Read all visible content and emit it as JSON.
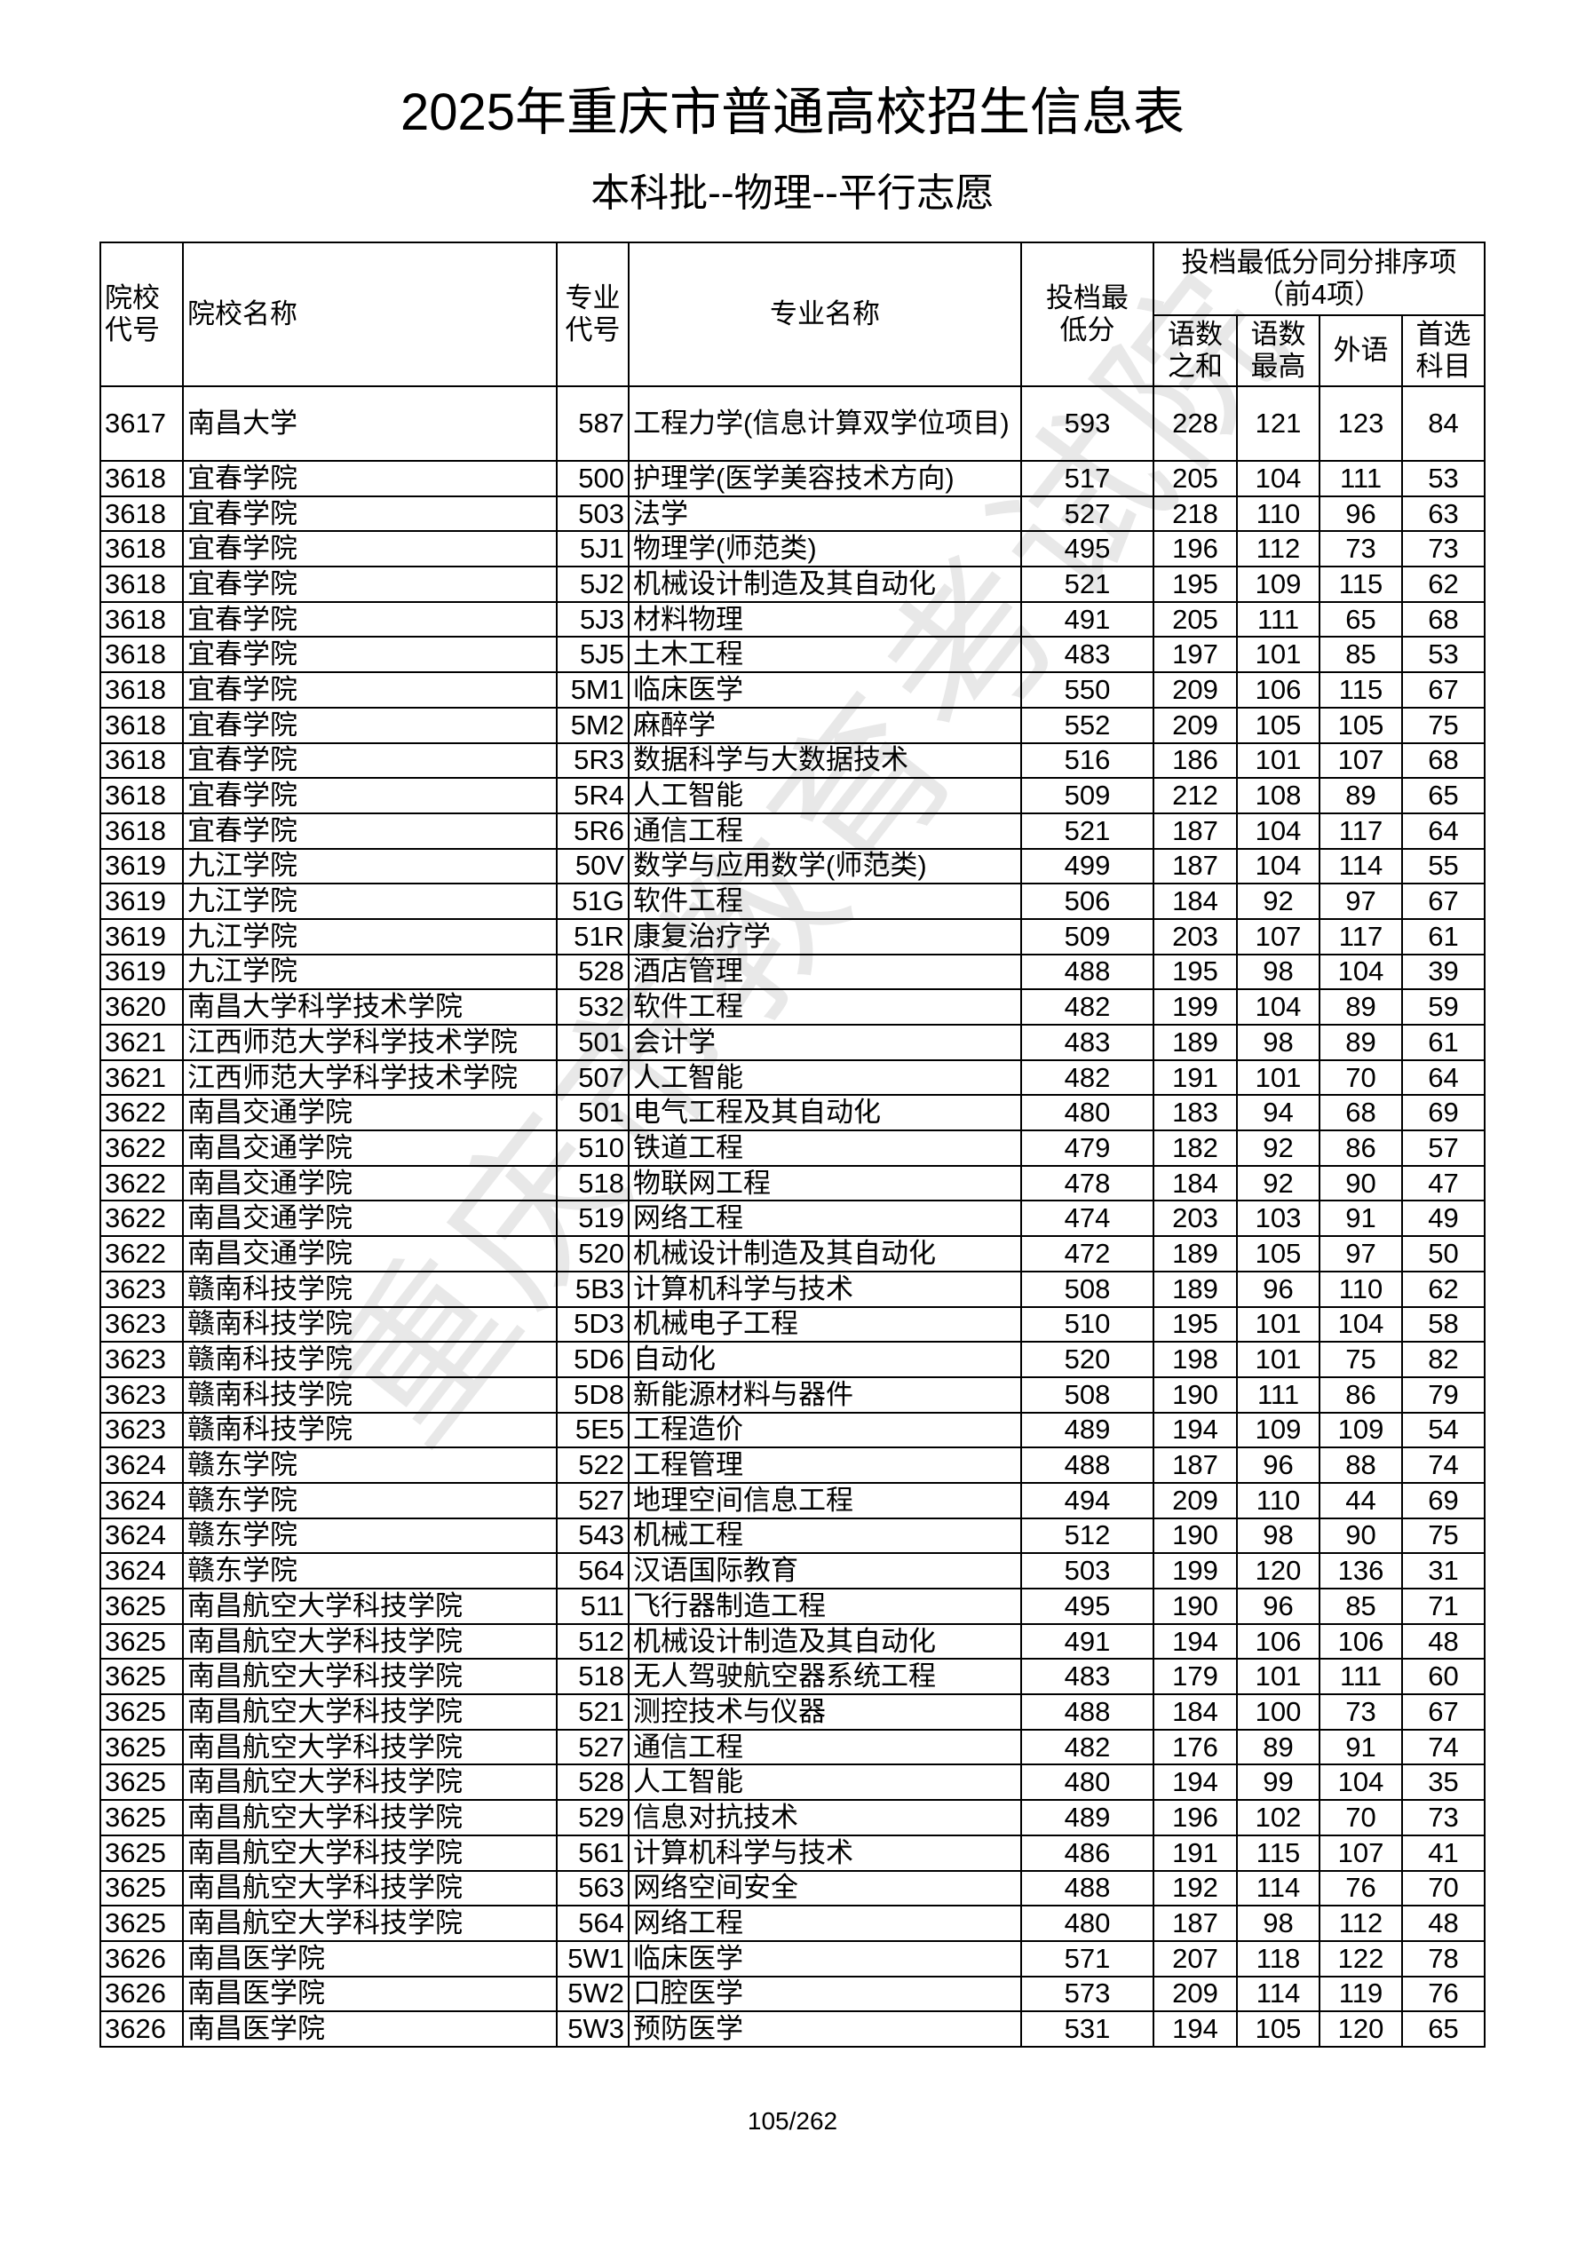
{
  "title": "2025年重庆市普通高校招生信息表",
  "subtitle": "本科批--物理--平行志愿",
  "watermark": "重庆市教育考试院",
  "headers": {
    "school_code": "院校代号",
    "school_name": "院校名称",
    "major_code": "专业代号",
    "major_name": "专业名称",
    "min_score": "投档最低分",
    "tiebreak_group": "投档最低分同分排序项（前4项）",
    "chn_math_sum": "语数之和",
    "chn_math_max": "语数最高",
    "foreign_lang": "外语",
    "first_subject": "首选科目"
  },
  "rows": [
    [
      "3617",
      "南昌大学",
      "587",
      "工程力学(信息计算双学位项目)",
      "593",
      "228",
      "121",
      "123",
      "84"
    ],
    [
      "3618",
      "宜春学院",
      "500",
      "护理学(医学美容技术方向)",
      "517",
      "205",
      "104",
      "111",
      "53"
    ],
    [
      "3618",
      "宜春学院",
      "503",
      "法学",
      "527",
      "218",
      "110",
      "96",
      "63"
    ],
    [
      "3618",
      "宜春学院",
      "5J1",
      "物理学(师范类)",
      "495",
      "196",
      "112",
      "73",
      "73"
    ],
    [
      "3618",
      "宜春学院",
      "5J2",
      "机械设计制造及其自动化",
      "521",
      "195",
      "109",
      "115",
      "62"
    ],
    [
      "3618",
      "宜春学院",
      "5J3",
      "材料物理",
      "491",
      "205",
      "111",
      "65",
      "68"
    ],
    [
      "3618",
      "宜春学院",
      "5J5",
      "土木工程",
      "483",
      "197",
      "101",
      "85",
      "53"
    ],
    [
      "3618",
      "宜春学院",
      "5M1",
      "临床医学",
      "550",
      "209",
      "106",
      "115",
      "67"
    ],
    [
      "3618",
      "宜春学院",
      "5M2",
      "麻醉学",
      "552",
      "209",
      "105",
      "105",
      "75"
    ],
    [
      "3618",
      "宜春学院",
      "5R3",
      "数据科学与大数据技术",
      "516",
      "186",
      "101",
      "107",
      "68"
    ],
    [
      "3618",
      "宜春学院",
      "5R4",
      "人工智能",
      "509",
      "212",
      "108",
      "89",
      "65"
    ],
    [
      "3618",
      "宜春学院",
      "5R6",
      "通信工程",
      "521",
      "187",
      "104",
      "117",
      "64"
    ],
    [
      "3619",
      "九江学院",
      "50V",
      "数学与应用数学(师范类)",
      "499",
      "187",
      "104",
      "114",
      "55"
    ],
    [
      "3619",
      "九江学院",
      "51G",
      "软件工程",
      "506",
      "184",
      "92",
      "97",
      "67"
    ],
    [
      "3619",
      "九江学院",
      "51R",
      "康复治疗学",
      "509",
      "203",
      "107",
      "117",
      "61"
    ],
    [
      "3619",
      "九江学院",
      "528",
      "酒店管理",
      "488",
      "195",
      "98",
      "104",
      "39"
    ],
    [
      "3620",
      "南昌大学科学技术学院",
      "532",
      "软件工程",
      "482",
      "199",
      "104",
      "89",
      "59"
    ],
    [
      "3621",
      "江西师范大学科学技术学院",
      "501",
      "会计学",
      "483",
      "189",
      "98",
      "89",
      "61"
    ],
    [
      "3621",
      "江西师范大学科学技术学院",
      "507",
      "人工智能",
      "482",
      "191",
      "101",
      "70",
      "64"
    ],
    [
      "3622",
      "南昌交通学院",
      "501",
      "电气工程及其自动化",
      "480",
      "183",
      "94",
      "68",
      "69"
    ],
    [
      "3622",
      "南昌交通学院",
      "510",
      "铁道工程",
      "479",
      "182",
      "92",
      "86",
      "57"
    ],
    [
      "3622",
      "南昌交通学院",
      "518",
      "物联网工程",
      "478",
      "184",
      "92",
      "90",
      "47"
    ],
    [
      "3622",
      "南昌交通学院",
      "519",
      "网络工程",
      "474",
      "203",
      "103",
      "91",
      "49"
    ],
    [
      "3622",
      "南昌交通学院",
      "520",
      "机械设计制造及其自动化",
      "472",
      "189",
      "105",
      "97",
      "50"
    ],
    [
      "3623",
      "赣南科技学院",
      "5B3",
      "计算机科学与技术",
      "508",
      "189",
      "96",
      "110",
      "62"
    ],
    [
      "3623",
      "赣南科技学院",
      "5D3",
      "机械电子工程",
      "510",
      "195",
      "101",
      "104",
      "58"
    ],
    [
      "3623",
      "赣南科技学院",
      "5D6",
      "自动化",
      "520",
      "198",
      "101",
      "75",
      "82"
    ],
    [
      "3623",
      "赣南科技学院",
      "5D8",
      "新能源材料与器件",
      "508",
      "190",
      "111",
      "86",
      "79"
    ],
    [
      "3623",
      "赣南科技学院",
      "5E5",
      "工程造价",
      "489",
      "194",
      "109",
      "109",
      "54"
    ],
    [
      "3624",
      "赣东学院",
      "522",
      "工程管理",
      "488",
      "187",
      "96",
      "88",
      "74"
    ],
    [
      "3624",
      "赣东学院",
      "527",
      "地理空间信息工程",
      "494",
      "209",
      "110",
      "44",
      "69"
    ],
    [
      "3624",
      "赣东学院",
      "543",
      "机械工程",
      "512",
      "190",
      "98",
      "90",
      "75"
    ],
    [
      "3624",
      "赣东学院",
      "564",
      "汉语国际教育",
      "503",
      "199",
      "120",
      "136",
      "31"
    ],
    [
      "3625",
      "南昌航空大学科技学院",
      "511",
      "飞行器制造工程",
      "495",
      "190",
      "96",
      "85",
      "71"
    ],
    [
      "3625",
      "南昌航空大学科技学院",
      "512",
      "机械设计制造及其自动化",
      "491",
      "194",
      "106",
      "106",
      "48"
    ],
    [
      "3625",
      "南昌航空大学科技学院",
      "518",
      "无人驾驶航空器系统工程",
      "483",
      "179",
      "101",
      "111",
      "60"
    ],
    [
      "3625",
      "南昌航空大学科技学院",
      "521",
      "测控技术与仪器",
      "488",
      "184",
      "100",
      "73",
      "67"
    ],
    [
      "3625",
      "南昌航空大学科技学院",
      "527",
      "通信工程",
      "482",
      "176",
      "89",
      "91",
      "74"
    ],
    [
      "3625",
      "南昌航空大学科技学院",
      "528",
      "人工智能",
      "480",
      "194",
      "99",
      "104",
      "35"
    ],
    [
      "3625",
      "南昌航空大学科技学院",
      "529",
      "信息对抗技术",
      "489",
      "196",
      "102",
      "70",
      "73"
    ],
    [
      "3625",
      "南昌航空大学科技学院",
      "561",
      "计算机科学与技术",
      "486",
      "191",
      "115",
      "107",
      "41"
    ],
    [
      "3625",
      "南昌航空大学科技学院",
      "563",
      "网络空间安全",
      "488",
      "192",
      "114",
      "76",
      "70"
    ],
    [
      "3625",
      "南昌航空大学科技学院",
      "564",
      "网络工程",
      "480",
      "187",
      "98",
      "112",
      "48"
    ],
    [
      "3626",
      "南昌医学院",
      "5W1",
      "临床医学",
      "571",
      "207",
      "118",
      "122",
      "78"
    ],
    [
      "3626",
      "南昌医学院",
      "5W2",
      "口腔医学",
      "573",
      "209",
      "114",
      "119",
      "76"
    ],
    [
      "3626",
      "南昌医学院",
      "5W3",
      "预防医学",
      "531",
      "194",
      "105",
      "120",
      "65"
    ]
  ],
  "page_number": "105/262"
}
